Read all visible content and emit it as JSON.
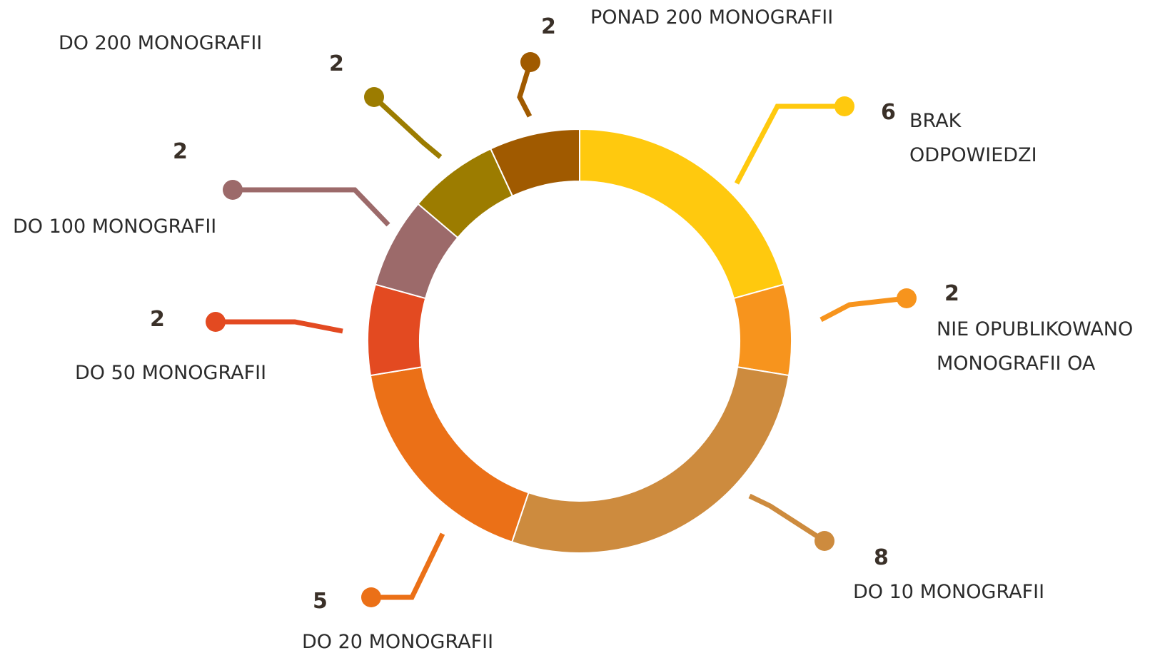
{
  "chart_data": {
    "type": "donut",
    "categories": [
      "BRAK ODPOWIEDZI",
      "NIE OPUBLIKOWANO MONOGRAFII OA",
      "DO 10 MONOGRAFII",
      "DO 20 MONOGRAFII",
      "DO 50 MONOGRAFII",
      "DO 100 MONOGRAFII",
      "DO 200 MONOGRAFII",
      "PONAD 200 MONOGRAFII"
    ],
    "values": [
      6,
      2,
      8,
      5,
      2,
      2,
      2,
      2
    ],
    "colors": [
      "#ffc90e",
      "#f7941d",
      "#cd8b3e",
      "#eb7017",
      "#e34a21",
      "#9c6a6a",
      "#9c7c00",
      "#a05a00"
    ]
  }
}
